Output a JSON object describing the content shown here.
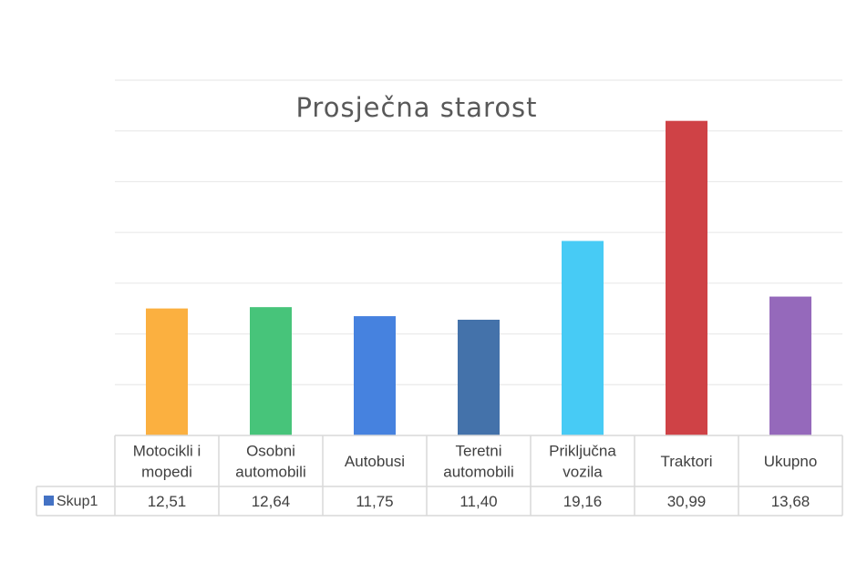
{
  "chart_data": {
    "type": "bar",
    "title": "Prosječna starost",
    "categories": [
      [
        "Motocikli i",
        "mopedi"
      ],
      [
        "Osobni",
        "automobili"
      ],
      [
        "Autobusi"
      ],
      [
        "Teretni",
        "automobili"
      ],
      [
        "Priključna",
        "vozila"
      ],
      [
        "Traktori"
      ],
      [
        "Ukupno"
      ]
    ],
    "series": [
      {
        "name": "Skup1",
        "values": [
          12.51,
          12.64,
          11.75,
          11.4,
          19.16,
          30.99,
          13.68
        ],
        "value_labels": [
          "12,51",
          "12,64",
          "11,75",
          "11,40",
          "19,16",
          "30,99",
          "13,68"
        ]
      }
    ],
    "bar_colors": [
      "#FBB040",
      "#47C47A",
      "#4682DF",
      "#4472AA",
      "#47CBF5",
      "#CF4246",
      "#9569BB"
    ],
    "legend_color": "#4472C4",
    "ylim": [
      0,
      35
    ],
    "grid": true,
    "legend_placement": "data-table",
    "xlabel": "",
    "ylabel": ""
  }
}
